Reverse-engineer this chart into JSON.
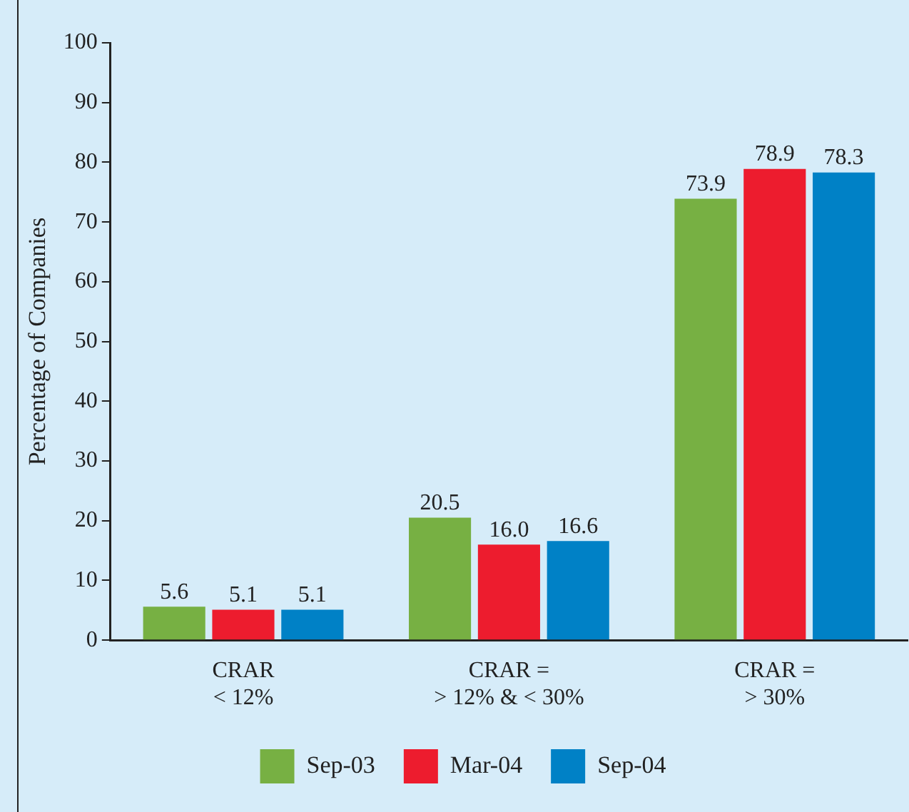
{
  "chart_data": {
    "type": "bar",
    "ylabel": "Percentage of Companies",
    "categories": [
      "CRAR\n< 12%",
      "CRAR =\n> 12% & < 30%",
      "CRAR =\n> 30%"
    ],
    "series": [
      {
        "name": "Sep-03",
        "color": "#77b043",
        "values": [
          5.6,
          20.5,
          73.9
        ]
      },
      {
        "name": "Mar-04",
        "color": "#ed1c2e",
        "values": [
          5.1,
          16.0,
          78.9
        ]
      },
      {
        "name": "Sep-04",
        "color": "#0081c6",
        "values": [
          5.1,
          16.6,
          78.3
        ]
      }
    ],
    "value_labels": [
      [
        "5.6",
        "20.5",
        "73.9"
      ],
      [
        "5.1",
        "16.0",
        "78.9"
      ],
      [
        "5.1",
        "16.6",
        "78.3"
      ]
    ],
    "ylim": [
      0,
      100
    ],
    "yticks": [
      0,
      10,
      20,
      30,
      40,
      50,
      60,
      70,
      80,
      90,
      100
    ],
    "grid": false,
    "legend": "bottom"
  }
}
